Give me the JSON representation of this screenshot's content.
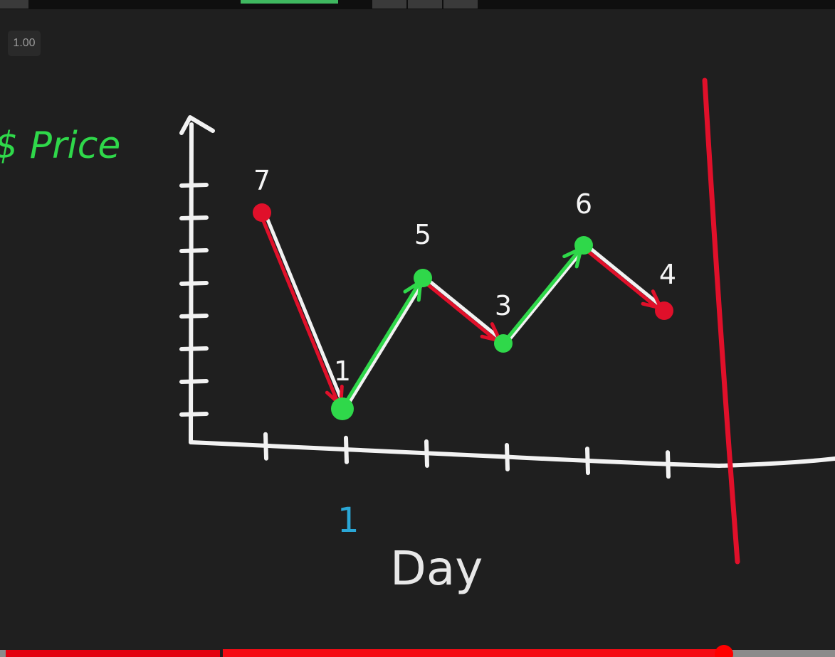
{
  "player": {
    "speed_label": "1.00",
    "progress_fraction": 0.867,
    "buffer_fraction": 0.867
  },
  "colors": {
    "background": "#1f1f1f",
    "chalk_white": "#f2f2f2",
    "up_green": "#2fd84a",
    "down_red": "#e0102a",
    "marker_blue": "#2aa7d6",
    "progress_red": "#ff0000"
  },
  "drawing": {
    "y_axis_label": "$ Price",
    "x_axis_label": "Day",
    "day_marker": "1",
    "price_labels": [
      "7",
      "1",
      "5",
      "3",
      "6",
      "4"
    ]
  },
  "chart_data": {
    "type": "line",
    "x": [
      1,
      2,
      3,
      4,
      5,
      6
    ],
    "values": [
      7,
      1,
      5,
      3,
      6,
      4
    ],
    "xlabel": "Day",
    "ylabel": "$ Price",
    "ylim": [
      0,
      8
    ]
  }
}
